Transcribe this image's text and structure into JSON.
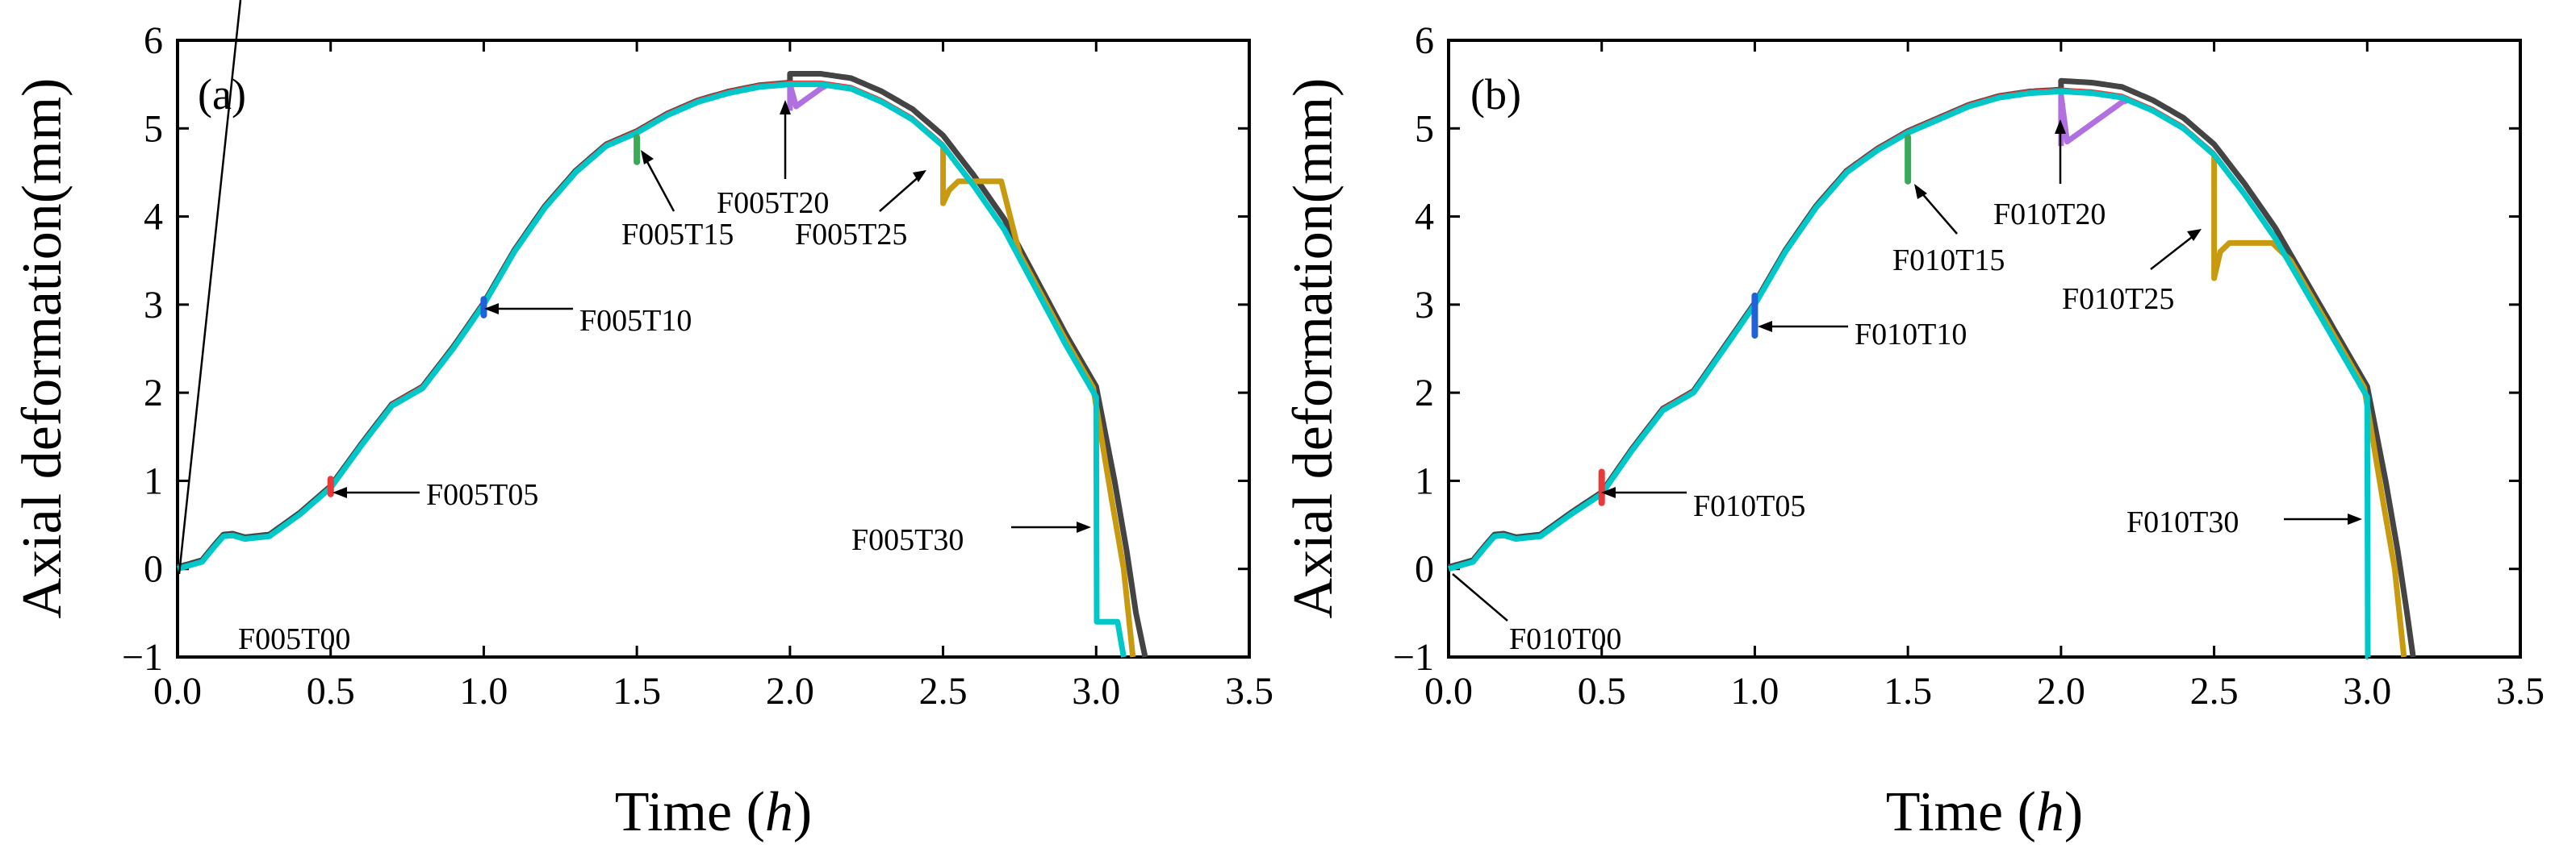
{
  "chart_data": [
    {
      "type": "line",
      "panel_label": "(a)",
      "xlabel": "Time",
      "xlabel_var": "h",
      "ylabel": "Axial deformation(mm)",
      "xlim": [
        0,
        3.5
      ],
      "ylim": [
        -1,
        6
      ],
      "xticks": [
        0.0,
        0.5,
        1.0,
        1.5,
        2.0,
        2.5,
        3.0,
        3.5
      ],
      "xtick_labels": [
        "0.0",
        "0.5",
        "1.0",
        "1.5",
        "2.0",
        "2.5",
        "3.0",
        "3.5"
      ],
      "yticks": [
        -1,
        0,
        1,
        2,
        3,
        4,
        5,
        6
      ],
      "ytick_labels": [
        "−1",
        "0",
        "1",
        "2",
        "3",
        "4",
        "5",
        "6"
      ],
      "base_curve": {
        "x": [
          0,
          0.05,
          0.08,
          0.12,
          0.15,
          0.18,
          0.22,
          0.3,
          0.4,
          0.5,
          0.6,
          0.7,
          0.8,
          0.9,
          1.0,
          1.1,
          1.2,
          1.3,
          1.4,
          1.5,
          1.6,
          1.7,
          1.8,
          1.9,
          2.0,
          2.1,
          2.2,
          2.3,
          2.4,
          2.5,
          2.6,
          2.7,
          2.8,
          2.9,
          3.0
        ],
        "y": [
          0,
          0.05,
          0.08,
          0.25,
          0.37,
          0.38,
          0.34,
          0.37,
          0.62,
          0.92,
          1.4,
          1.85,
          2.05,
          2.5,
          3.0,
          3.6,
          4.1,
          4.5,
          4.8,
          4.95,
          5.15,
          5.3,
          5.4,
          5.47,
          5.5,
          5.5,
          5.45,
          5.3,
          5.1,
          4.8,
          4.35,
          3.85,
          3.2,
          2.55,
          1.95
        ]
      },
      "series": [
        {
          "name": "F005T00",
          "color": "#00c8c8",
          "switch_x": 0.0,
          "kind": "cyan",
          "fall_x": 3.0,
          "end_x": 3.09,
          "floor": -0.6
        },
        {
          "name": "F005T05",
          "color": "#e8393b",
          "switch_x": 0.5,
          "kind": "spike",
          "spike_lo": 0.85,
          "spike_hi": 1.02
        },
        {
          "name": "F005T10",
          "color": "#2060d8",
          "switch_x": 1.0,
          "kind": "spike",
          "spike_lo": 2.88,
          "spike_hi": 3.06
        },
        {
          "name": "F005T15",
          "color": "#3ca85a",
          "switch_x": 1.5,
          "kind": "spike",
          "spike_lo": 4.62,
          "spike_hi": 4.9
        },
        {
          "name": "F005T20",
          "color": "#b070e0",
          "switch_x": 2.0,
          "kind": "spike",
          "spike_lo": 5.2,
          "spike_hi": 5.5
        },
        {
          "name": "F005T25",
          "color": "#c89a10",
          "switch_x": 2.5,
          "kind": "drop",
          "drop_to": 4.15,
          "recover": 4.4
        },
        {
          "name": "F005T30",
          "color": "#444444",
          "switch_x": 3.0,
          "kind": "black",
          "end_x": 3.16
        }
      ],
      "annotations": [
        "F005T00",
        "F005T05",
        "F005T10",
        "F005T15",
        "F005T20",
        "F005T25",
        "F005T30"
      ]
    },
    {
      "type": "line",
      "panel_label": "(b)",
      "xlabel": "Time",
      "xlabel_var": "h",
      "ylabel": "",
      "xlim": [
        0,
        3.5
      ],
      "ylim": [
        -1,
        6
      ],
      "xticks": [
        0.0,
        0.5,
        1.0,
        1.5,
        2.0,
        2.5,
        3.0,
        3.5
      ],
      "xtick_labels": [
        "0.0",
        "0.5",
        "1.0",
        "1.5",
        "2.0",
        "2.5",
        "3.0",
        "3.5"
      ],
      "yticks": [
        -1,
        0,
        1,
        2,
        3,
        4,
        5,
        6
      ],
      "ytick_labels": [
        "−1",
        "0",
        "1",
        "2",
        "3",
        "4",
        "5",
        "6"
      ],
      "base_curve": {
        "x": [
          0,
          0.05,
          0.08,
          0.12,
          0.15,
          0.18,
          0.22,
          0.3,
          0.4,
          0.5,
          0.6,
          0.7,
          0.8,
          0.9,
          1.0,
          1.1,
          1.2,
          1.3,
          1.4,
          1.5,
          1.6,
          1.7,
          1.8,
          1.9,
          2.0,
          2.1,
          2.2,
          2.3,
          2.4,
          2.5,
          2.6,
          2.7,
          2.8,
          2.9,
          3.0
        ],
        "y": [
          0,
          0.05,
          0.08,
          0.25,
          0.37,
          0.38,
          0.34,
          0.37,
          0.62,
          0.85,
          1.35,
          1.8,
          2.0,
          2.5,
          3.0,
          3.6,
          4.1,
          4.5,
          4.75,
          4.95,
          5.1,
          5.25,
          5.35,
          5.4,
          5.42,
          5.4,
          5.35,
          5.2,
          5.0,
          4.7,
          4.25,
          3.75,
          3.15,
          2.55,
          1.95
        ]
      },
      "series": [
        {
          "name": "F010T00",
          "color": "#00c8c8",
          "switch_x": 0.0,
          "kind": "cyan",
          "fall_x": 3.0,
          "end_x": 3.0,
          "floor": -1.0
        },
        {
          "name": "F010T05",
          "color": "#e8393b",
          "switch_x": 0.5,
          "kind": "spike",
          "spike_lo": 0.75,
          "spike_hi": 1.1
        },
        {
          "name": "F010T10",
          "color": "#2060d8",
          "switch_x": 1.0,
          "kind": "spike",
          "spike_lo": 2.65,
          "spike_hi": 3.1
        },
        {
          "name": "F010T15",
          "color": "#3ca85a",
          "switch_x": 1.5,
          "kind": "spike",
          "spike_lo": 4.4,
          "spike_hi": 4.9
        },
        {
          "name": "F010T20",
          "color": "#b070e0",
          "switch_x": 2.0,
          "kind": "spike",
          "spike_lo": 4.8,
          "spike_hi": 5.38
        },
        {
          "name": "F010T25",
          "color": "#c89a10",
          "switch_x": 2.5,
          "kind": "drop",
          "drop_to": 3.3,
          "recover": 3.7
        },
        {
          "name": "F010T30",
          "color": "#444444",
          "switch_x": 3.0,
          "kind": "black",
          "end_x": 3.15
        }
      ],
      "annotations": [
        "F010T00",
        "F010T05",
        "F010T10",
        "F010T15",
        "F010T20",
        "F010T25",
        "F010T30"
      ]
    }
  ]
}
